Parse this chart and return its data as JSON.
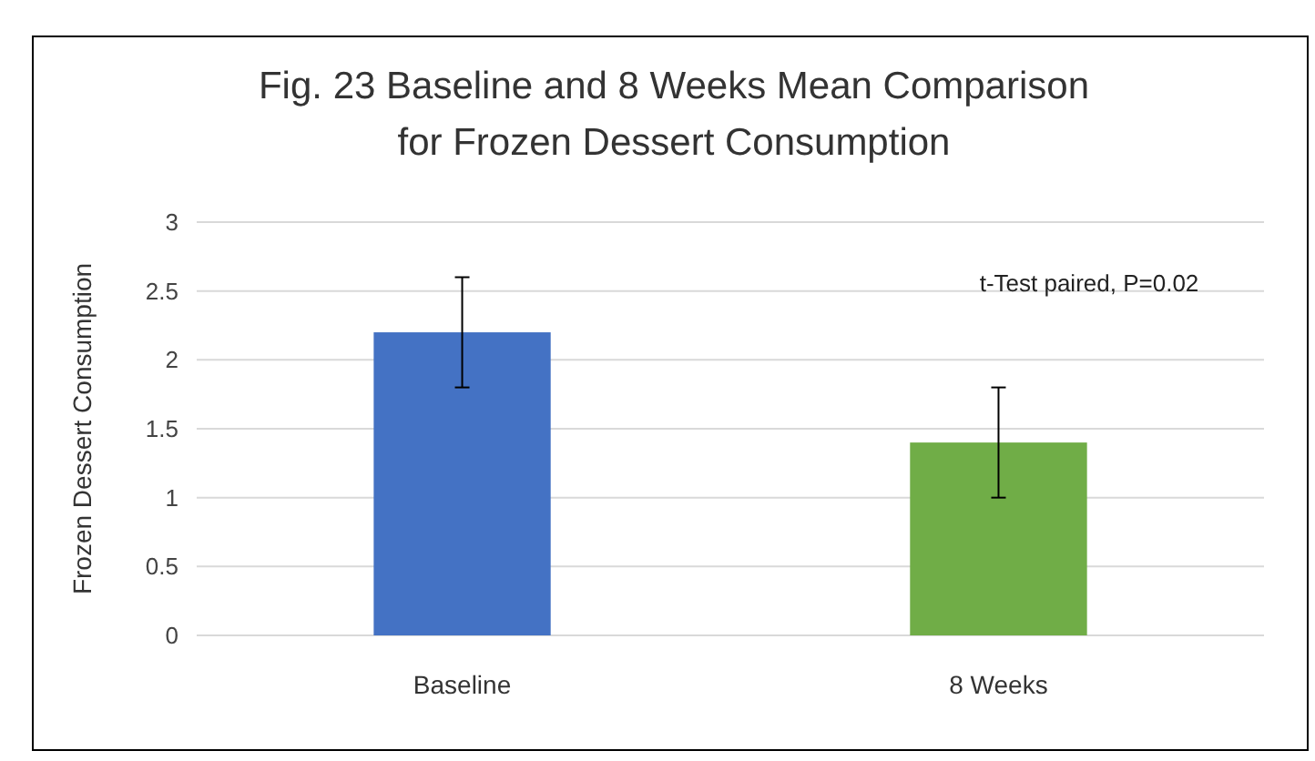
{
  "chart_data": {
    "type": "bar",
    "title": "Fig. 23 Baseline and 8 Weeks Mean Comparison\nfor Frozen Dessert Consumption",
    "ylabel": "Frozen Dessert Consumption",
    "categories": [
      "Baseline",
      "8 Weeks"
    ],
    "values": [
      2.2,
      1.4
    ],
    "colors": [
      "#4472c4",
      "#70ad47"
    ],
    "errors": [
      0.4,
      0.4
    ],
    "ylim": [
      0,
      3
    ],
    "yticks": [
      0,
      {
        "value": 0.5,
        "label": "0.5"
      },
      1,
      {
        "value": 1.5,
        "label": "1.5"
      },
      2,
      {
        "value": 2.5,
        "label": "2.5"
      },
      3
    ],
    "grid": "y",
    "annotations": [
      "t-Test paired, P=0.02"
    ]
  }
}
